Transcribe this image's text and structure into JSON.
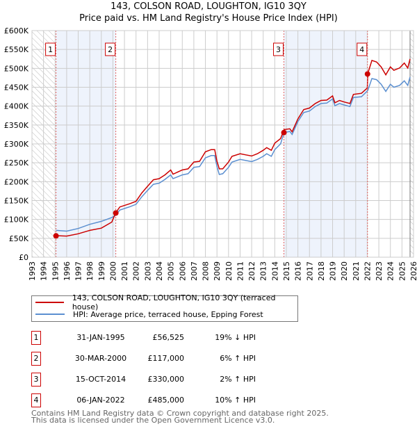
{
  "title": "143, COLSON ROAD, LOUGHTON, IG10 3QY",
  "subtitle": "Price paid vs. HM Land Registry's House Price Index (HPI)",
  "chart_data": {
    "type": "line",
    "title": "143, COLSON ROAD, LOUGHTON, IG10 3QY - Price paid vs. HM Land Registry's House Price Index (HPI)",
    "xlim": [
      1993,
      2026
    ],
    "ylim": [
      0,
      600000
    ],
    "x_ticks": [
      "1993",
      "1994",
      "1995",
      "1996",
      "1997",
      "1998",
      "1999",
      "2000",
      "2001",
      "2002",
      "2003",
      "2004",
      "2005",
      "2006",
      "2007",
      "2008",
      "2009",
      "2010",
      "2011",
      "2012",
      "2013",
      "2014",
      "2015",
      "2016",
      "2017",
      "2018",
      "2019",
      "2020",
      "2021",
      "2022",
      "2023",
      "2024",
      "2025",
      "2026"
    ],
    "y_ticks": [
      {
        "v": 0,
        "label": "£0"
      },
      {
        "v": 50000,
        "label": "£50K"
      },
      {
        "v": 100000,
        "label": "£100K"
      },
      {
        "v": 150000,
        "label": "£150K"
      },
      {
        "v": 200000,
        "label": "£200K"
      },
      {
        "v": 250000,
        "label": "£250K"
      },
      {
        "v": 300000,
        "label": "£300K"
      },
      {
        "v": 350000,
        "label": "£350K"
      },
      {
        "v": 400000,
        "label": "£400K"
      },
      {
        "v": 450000,
        "label": "£450K"
      },
      {
        "v": 500000,
        "label": "£500K"
      },
      {
        "v": 550000,
        "label": "£550K"
      },
      {
        "v": 600000,
        "label": "£600K"
      }
    ],
    "grid": true,
    "x": [
      1995.08,
      1996,
      1997,
      1998,
      1999,
      1999.9,
      2000.25,
      2000.6,
      2001.5,
      2002,
      2002.5,
      2003,
      2003.5,
      2004,
      2004.5,
      2005,
      2005.2,
      2006,
      2006.5,
      2007,
      2007.5,
      2008,
      2008.5,
      2008.8,
      2009,
      2009.2,
      2009.5,
      2010,
      2010.3,
      2011,
      2011.5,
      2012,
      2012.5,
      2013,
      2013.3,
      2013.7,
      2014,
      2014.5,
      2014.8,
      2015.3,
      2015.5,
      2016,
      2016.5,
      2017,
      2017.5,
      2018,
      2018.5,
      2019,
      2019.2,
      2019.6,
      2020,
      2020.5,
      2020.8,
      2021.5,
      2022,
      2022.05,
      2022.4,
      2022.8,
      2023.2,
      2023.6,
      2024,
      2024.3,
      2024.8,
      2025.2,
      2025.5,
      2025.7
    ],
    "series": [
      {
        "name": "143, COLSON ROAD, LOUGHTON, IG10 3QY (terraced house)",
        "color": "#cc0000",
        "values": [
          57000,
          56000,
          62000,
          71000,
          77000,
          93000,
          118000,
          133000,
          142000,
          148000,
          170000,
          188000,
          205000,
          208000,
          218000,
          231000,
          220000,
          231000,
          234000,
          252000,
          254000,
          279000,
          285000,
          285000,
          254000,
          234000,
          234000,
          252000,
          267000,
          274000,
          271000,
          268000,
          274000,
          283000,
          290000,
          283000,
          302000,
          314000,
          338000,
          340000,
          332000,
          366000,
          391000,
          395000,
          407000,
          415000,
          416000,
          427000,
          409000,
          415000,
          411000,
          407000,
          431000,
          434000,
          448000,
          487000,
          521000,
          517000,
          504000,
          483000,
          504000,
          495000,
          501000,
          514000,
          501000,
          525000
        ]
      },
      {
        "name": "HPI: Average price, terraced house, Epping Forest",
        "color": "#5b8fd0",
        "values": [
          71000,
          69000,
          76000,
          87000,
          95000,
          105000,
          111000,
          125000,
          134000,
          140000,
          160000,
          177000,
          193000,
          196000,
          206000,
          218000,
          208000,
          218000,
          221000,
          238000,
          240000,
          263000,
          269000,
          269000,
          240000,
          219000,
          221000,
          238000,
          252000,
          259000,
          256000,
          253000,
          259000,
          267000,
          274000,
          267000,
          285000,
          300000,
          330000,
          333000,
          325000,
          359000,
          383000,
          387000,
          399000,
          407000,
          408000,
          419000,
          401000,
          407000,
          403000,
          399000,
          423000,
          425000,
          440000,
          442000,
          473000,
          470000,
          458000,
          439000,
          458000,
          450000,
          455000,
          467000,
          455000,
          477000
        ]
      }
    ],
    "sales": [
      {
        "label": "1",
        "x": 1995.08,
        "price": 56525
      },
      {
        "label": "2",
        "x": 2000.25,
        "price": 117000
      },
      {
        "label": "3",
        "x": 2014.79,
        "price": 330000
      },
      {
        "label": "4",
        "x": 2022.02,
        "price": 485000
      }
    ],
    "shaded_ranges": [
      [
        1995.08,
        2000.25
      ],
      [
        2014.79,
        2022.02
      ]
    ],
    "hatched_ranges": [
      [
        1993,
        1995
      ],
      [
        2025.7,
        2026
      ]
    ],
    "legend_placement": "below"
  },
  "legend": {
    "items": [
      {
        "label": "143, COLSON ROAD, LOUGHTON, IG10 3QY (terraced house)",
        "color": "#cc0000"
      },
      {
        "label": "HPI: Average price, terraced house, Epping Forest",
        "color": "#5b8fd0"
      }
    ]
  },
  "transactions": [
    {
      "num": "1",
      "date": "31-JAN-1995",
      "price": "£56,525",
      "hpi": "19% ↓ HPI"
    },
    {
      "num": "2",
      "date": "30-MAR-2000",
      "price": "£117,000",
      "hpi": "6% ↑ HPI"
    },
    {
      "num": "3",
      "date": "15-OCT-2014",
      "price": "£330,000",
      "hpi": "2% ↑ HPI"
    },
    {
      "num": "4",
      "date": "06-JAN-2022",
      "price": "£485,000",
      "hpi": "10% ↑ HPI"
    }
  ],
  "footer": {
    "line1": "Contains HM Land Registry data © Crown copyright and database right 2025.",
    "line2": "This data is licensed under the Open Government Licence v3.0."
  }
}
